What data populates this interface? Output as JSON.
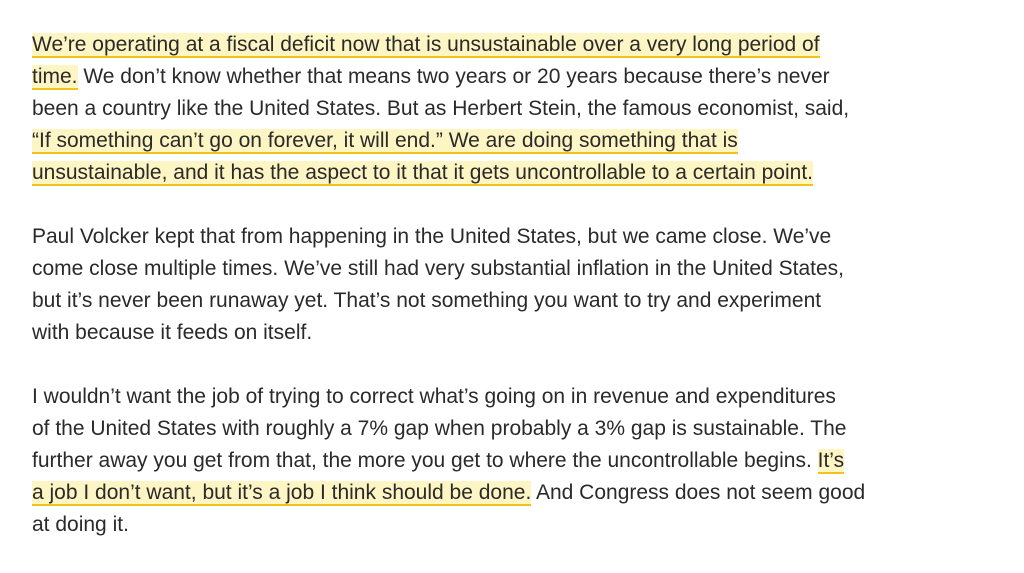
{
  "paragraphs": [
    {
      "lines": [
        {
          "segments": [
            {
              "text": "We’re operating at a fiscal deficit now that is unsustainable over a very long period of",
              "highlight": true
            }
          ]
        },
        {
          "segments": [
            {
              "text": "time.",
              "highlight": true
            },
            {
              "text": " We don’t know whether that means two years or 20 years because there’s never",
              "highlight": false
            }
          ]
        },
        {
          "segments": [
            {
              "text": "been a country like the United States. But as Herbert Stein, the famous economist, said,",
              "highlight": false
            }
          ]
        },
        {
          "segments": [
            {
              "text": "“If something can’t go on forever, it will end.” We are doing something that is",
              "highlight": true
            }
          ]
        },
        {
          "segments": [
            {
              "text": "unsustainable, and it has the aspect to it that it gets uncontrollable to a certain point.",
              "highlight": true
            }
          ]
        }
      ]
    },
    {
      "lines": [
        {
          "segments": [
            {
              "text": "Paul Volcker kept that from happening in the United States, but we came close. We’ve",
              "highlight": false
            }
          ]
        },
        {
          "segments": [
            {
              "text": "come close multiple times. We’ve still had very substantial inflation in the United States,",
              "highlight": false
            }
          ]
        },
        {
          "segments": [
            {
              "text": "but it’s never been runaway yet. That’s not something you want to try and experiment",
              "highlight": false
            }
          ]
        },
        {
          "segments": [
            {
              "text": "with because it feeds on itself.",
              "highlight": false
            }
          ]
        }
      ]
    },
    {
      "lines": [
        {
          "segments": [
            {
              "text": "I wouldn’t want the job of trying to correct what’s going on in revenue and expenditures",
              "highlight": false
            }
          ]
        },
        {
          "segments": [
            {
              "text": "of the United States with roughly a 7% gap when probably a 3% gap is sustainable. The",
              "highlight": false
            }
          ]
        },
        {
          "segments": [
            {
              "text": "further away you get from that, the more you get to where the uncontrollable begins. ",
              "highlight": false
            },
            {
              "text": "It’s",
              "highlight": true
            }
          ]
        },
        {
          "segments": [
            {
              "text": "a job I don’t want, but it’s a job I think should be done.",
              "highlight": true
            },
            {
              "text": " And Congress does not seem good",
              "highlight": false
            }
          ]
        },
        {
          "segments": [
            {
              "text": "at doing it.",
              "highlight": false
            }
          ]
        }
      ]
    }
  ]
}
